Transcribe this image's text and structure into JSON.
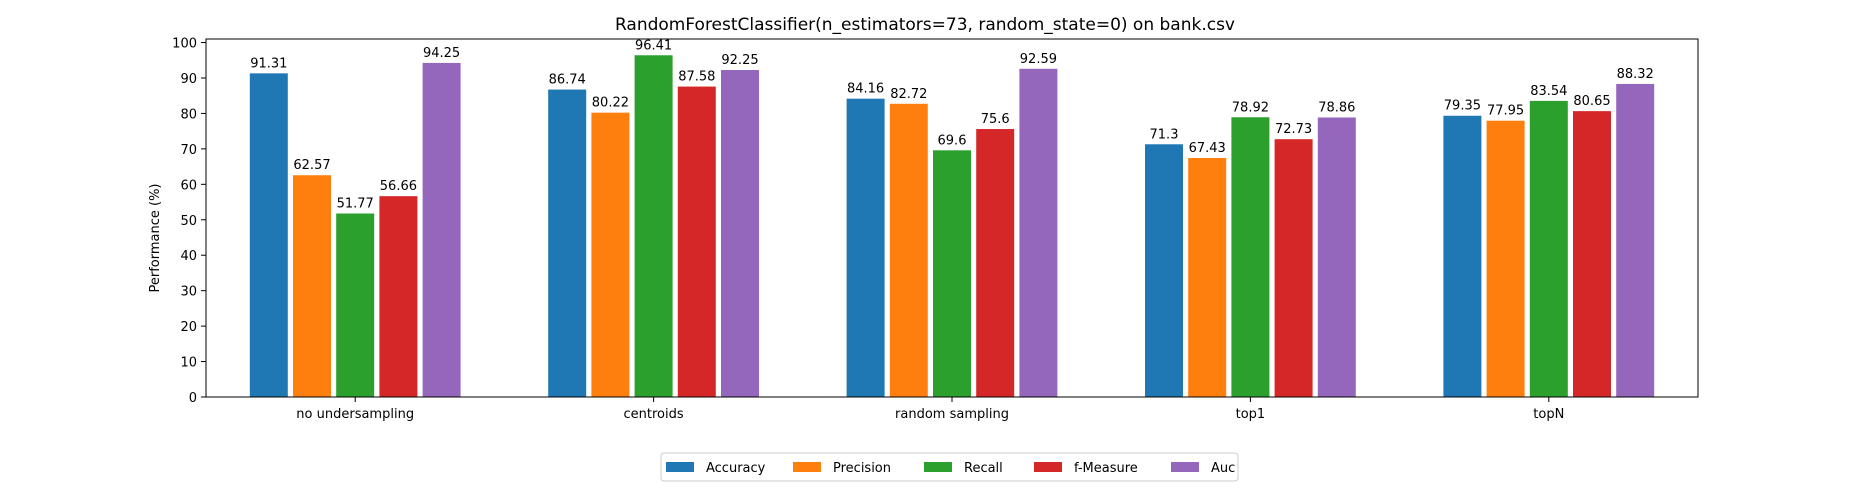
{
  "chart_data": {
    "type": "bar",
    "title": "RandomForestClassifier(n_estimators=73, random_state=0) on bank.csv",
    "xlabel": "",
    "ylabel": "Performance (%)",
    "ylim": [
      0,
      101
    ],
    "yticks": [
      0,
      10,
      20,
      30,
      40,
      50,
      60,
      70,
      80,
      90,
      100
    ],
    "grid": false,
    "legend_position": "bottom-center",
    "categories": [
      "no undersampling",
      "centroids",
      "random sampling",
      "top1",
      "topN"
    ],
    "series": [
      {
        "name": "Accuracy",
        "color": "#1f77b4",
        "values": [
          91.31,
          86.74,
          84.16,
          71.3,
          79.35
        ],
        "labels": [
          "91.31",
          "86.74",
          "84.16",
          "71.3",
          "79.35"
        ]
      },
      {
        "name": "Precision",
        "color": "#ff7f0e",
        "values": [
          62.57,
          80.22,
          82.72,
          67.43,
          77.95
        ],
        "labels": [
          "62.57",
          "80.22",
          "82.72",
          "67.43",
          "77.95"
        ]
      },
      {
        "name": "Recall",
        "color": "#2ca02c",
        "values": [
          51.77,
          96.41,
          69.6,
          78.92,
          83.54
        ],
        "labels": [
          "51.77",
          "96.41",
          "69.6",
          "78.92",
          "83.54"
        ]
      },
      {
        "name": "f-Measure",
        "color": "#d62728",
        "values": [
          56.66,
          87.58,
          75.6,
          72.73,
          80.65
        ],
        "labels": [
          "56.66",
          "87.58",
          "75.6",
          "72.73",
          "80.65"
        ]
      },
      {
        "name": "Auc",
        "color": "#9467bd",
        "values": [
          94.25,
          92.25,
          92.59,
          78.86,
          88.32
        ],
        "labels": [
          "94.25",
          "92.25",
          "92.59",
          "78.86",
          "88.32"
        ]
      }
    ]
  }
}
